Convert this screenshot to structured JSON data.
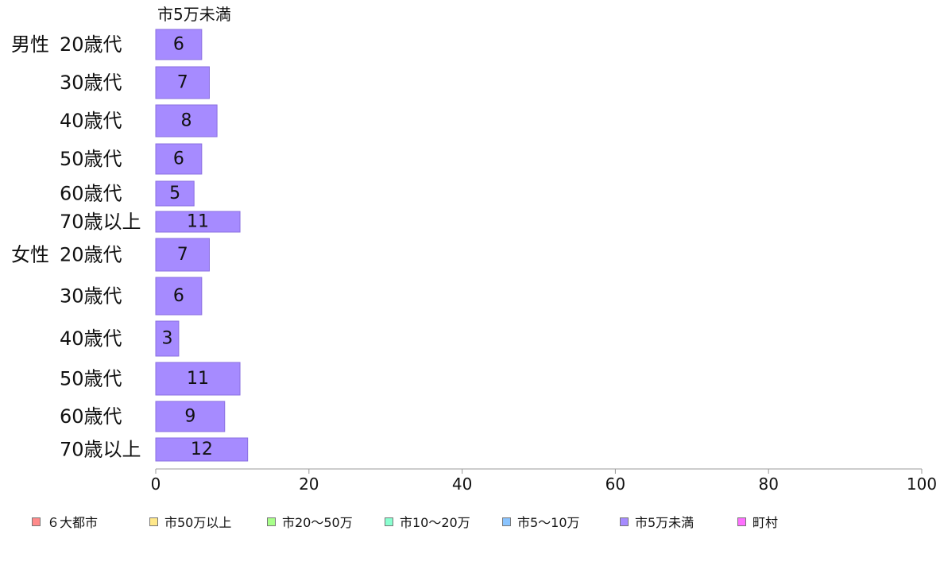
{
  "chart_data": {
    "type": "bar",
    "orientation": "horizontal",
    "series_header": "市5万未満",
    "groups": [
      {
        "label": "男性",
        "categories": [
          "20歳代",
          "30歳代",
          "40歳代",
          "50歳代",
          "60歳代",
          "70歳以上"
        ],
        "values": [
          6,
          7,
          8,
          6,
          5,
          11
        ]
      },
      {
        "label": "女性",
        "categories": [
          "20歳代",
          "30歳代",
          "40歳代",
          "50歳代",
          "60歳代",
          "70歳以上"
        ],
        "values": [
          7,
          6,
          3,
          11,
          9,
          12
        ]
      }
    ],
    "xlim": [
      0,
      100
    ],
    "xticks": [
      0,
      20,
      40,
      60,
      80,
      100
    ],
    "bar_color": "#a68bff",
    "bar_border_color": "#8a6fe0",
    "legend": {
      "position": "bottom",
      "items": [
        {
          "label": "６大都市",
          "color": "#ff8a8a"
        },
        {
          "label": "市50万以上",
          "color": "#ffe88a"
        },
        {
          "label": "市20～50万",
          "color": "#a8ff8a"
        },
        {
          "label": "市10～20万",
          "color": "#8affd0"
        },
        {
          "label": "市5～10万",
          "color": "#8ac4ff"
        },
        {
          "label": "市5万未満",
          "color": "#a68bff"
        },
        {
          "label": "町村",
          "color": "#ff70ff"
        }
      ]
    }
  }
}
